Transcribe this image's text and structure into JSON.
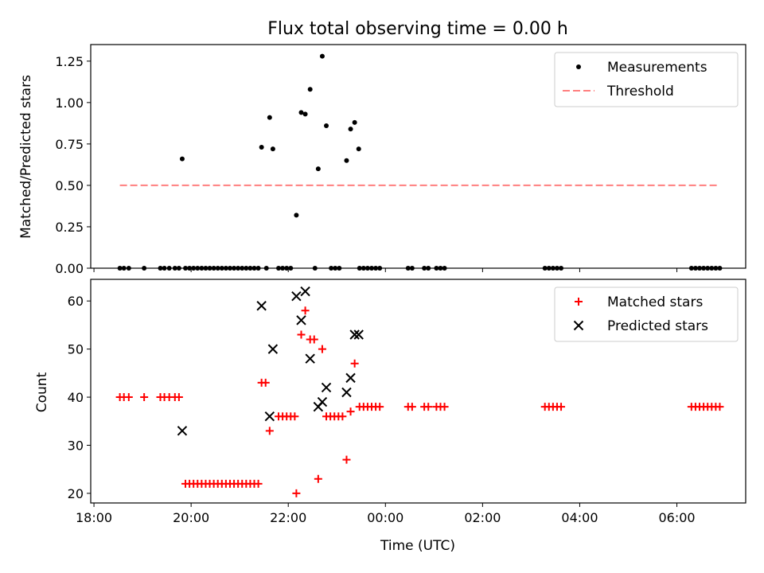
{
  "title": "Flux total observing time = 0.00 h",
  "chart_data": [
    {
      "type": "scatter",
      "ylabel": "Matched/Predicted stars",
      "xlabel": "",
      "ylim": [
        0,
        1.35
      ],
      "yticks": [
        0,
        0.25,
        0.5,
        0.75,
        1.0,
        1.25
      ],
      "ytick_labels": [
        "0.00",
        "0.25",
        "0.50",
        "0.75",
        "1.00",
        "1.25"
      ],
      "legend": {
        "position": "top-right",
        "entries": [
          "Measurements",
          "Threshold"
        ]
      },
      "series": [
        {
          "name": "Measurements",
          "marker": "dot",
          "color": "#000000",
          "points": [
            [
              "18:32",
              0
            ],
            [
              "18:37",
              0
            ],
            [
              "18:43",
              0
            ],
            [
              "19:02",
              0
            ],
            [
              "19:22",
              0
            ],
            [
              "19:27",
              0
            ],
            [
              "19:33",
              0
            ],
            [
              "19:40",
              0
            ],
            [
              "19:45",
              0
            ],
            [
              "19:53",
              0
            ],
            [
              "19:58",
              0
            ],
            [
              "20:03",
              0
            ],
            [
              "20:08",
              0
            ],
            [
              "20:13",
              0
            ],
            [
              "20:18",
              0
            ],
            [
              "20:23",
              0
            ],
            [
              "20:28",
              0
            ],
            [
              "20:33",
              0
            ],
            [
              "20:38",
              0
            ],
            [
              "20:43",
              0
            ],
            [
              "20:48",
              0
            ],
            [
              "20:53",
              0
            ],
            [
              "20:58",
              0
            ],
            [
              "21:03",
              0
            ],
            [
              "21:08",
              0
            ],
            [
              "21:13",
              0
            ],
            [
              "21:18",
              0
            ],
            [
              "21:23",
              0
            ],
            [
              "21:33",
              0
            ],
            [
              "21:48",
              0
            ],
            [
              "21:53",
              0
            ],
            [
              "21:58",
              0
            ],
            [
              "22:03",
              0
            ],
            [
              "22:33",
              0
            ],
            [
              "22:53",
              0
            ],
            [
              "22:58",
              0
            ],
            [
              "23:03",
              0
            ],
            [
              "23:28",
              0
            ],
            [
              "23:33",
              0
            ],
            [
              "23:38",
              0
            ],
            [
              "23:43",
              0
            ],
            [
              "23:48",
              0
            ],
            [
              "23:53",
              0
            ],
            [
              "00:28",
              0
            ],
            [
              "00:33",
              0
            ],
            [
              "00:48",
              0
            ],
            [
              "00:53",
              0
            ],
            [
              "01:03",
              0
            ],
            [
              "01:08",
              0
            ],
            [
              "01:13",
              0
            ],
            [
              "03:17",
              0
            ],
            [
              "03:22",
              0
            ],
            [
              "03:27",
              0
            ],
            [
              "03:32",
              0
            ],
            [
              "03:37",
              0
            ],
            [
              "06:18",
              0
            ],
            [
              "06:23",
              0
            ],
            [
              "06:28",
              0
            ],
            [
              "06:33",
              0
            ],
            [
              "06:38",
              0
            ],
            [
              "06:43",
              0
            ],
            [
              "06:48",
              0
            ],
            [
              "06:53",
              0
            ],
            [
              "19:49",
              0.66
            ],
            [
              "21:27",
              0.73
            ],
            [
              "21:37",
              0.91
            ],
            [
              "21:41",
              0.72
            ],
            [
              "22:10",
              0.32
            ],
            [
              "22:16",
              0.94
            ],
            [
              "22:21",
              0.93
            ],
            [
              "22:27",
              1.08
            ],
            [
              "22:37",
              0.6
            ],
            [
              "22:42",
              1.28
            ],
            [
              "22:47",
              0.86
            ],
            [
              "23:12",
              0.65
            ],
            [
              "23:17",
              0.84
            ],
            [
              "23:22",
              0.88
            ],
            [
              "23:27",
              0.72
            ]
          ]
        },
        {
          "name": "Threshold",
          "style": "dashed",
          "color": "#ff7f7f",
          "points": [
            [
              "18:32",
              0.5
            ],
            [
              "06:53",
              0.5
            ]
          ]
        }
      ]
    },
    {
      "type": "scatter",
      "ylabel": "Count",
      "xlabel": "Time (UTC)",
      "ylim": [
        18,
        64.5
      ],
      "yticks": [
        20,
        30,
        40,
        50,
        60
      ],
      "xticks": [
        "18:00",
        "20:00",
        "22:00",
        "00:00",
        "02:00",
        "04:00",
        "06:00"
      ],
      "xlim": [
        "17:56",
        "07:25"
      ],
      "legend": {
        "position": "top-right",
        "entries": [
          "Matched stars",
          "Predicted stars"
        ]
      },
      "series": [
        {
          "name": "Matched stars",
          "marker": "plus",
          "color": "#ff0000",
          "points": [
            [
              "18:32",
              40
            ],
            [
              "18:37",
              40
            ],
            [
              "18:43",
              40
            ],
            [
              "19:02",
              40
            ],
            [
              "19:22",
              40
            ],
            [
              "19:27",
              40
            ],
            [
              "19:33",
              40
            ],
            [
              "19:40",
              40
            ],
            [
              "19:45",
              40
            ],
            [
              "19:53",
              22
            ],
            [
              "19:58",
              22
            ],
            [
              "20:03",
              22
            ],
            [
              "20:08",
              22
            ],
            [
              "20:13",
              22
            ],
            [
              "20:18",
              22
            ],
            [
              "20:23",
              22
            ],
            [
              "20:28",
              22
            ],
            [
              "20:33",
              22
            ],
            [
              "20:38",
              22
            ],
            [
              "20:43",
              22
            ],
            [
              "20:48",
              22
            ],
            [
              "20:53",
              22
            ],
            [
              "20:58",
              22
            ],
            [
              "21:03",
              22
            ],
            [
              "21:08",
              22
            ],
            [
              "21:13",
              22
            ],
            [
              "21:18",
              22
            ],
            [
              "21:23",
              22
            ],
            [
              "21:27",
              43
            ],
            [
              "21:32",
              43
            ],
            [
              "21:37",
              33
            ],
            [
              "21:48",
              36
            ],
            [
              "21:53",
              36
            ],
            [
              "21:58",
              36
            ],
            [
              "22:03",
              36
            ],
            [
              "22:08",
              36
            ],
            [
              "22:10",
              20
            ],
            [
              "22:16",
              53
            ],
            [
              "22:21",
              58
            ],
            [
              "22:27",
              52
            ],
            [
              "22:32",
              52
            ],
            [
              "22:37",
              23
            ],
            [
              "22:42",
              50
            ],
            [
              "22:47",
              36
            ],
            [
              "22:52",
              36
            ],
            [
              "22:57",
              36
            ],
            [
              "23:02",
              36
            ],
            [
              "23:07",
              36
            ],
            [
              "23:12",
              27
            ],
            [
              "23:17",
              37
            ],
            [
              "23:22",
              47
            ],
            [
              "23:28",
              38
            ],
            [
              "23:33",
              38
            ],
            [
              "23:38",
              38
            ],
            [
              "23:43",
              38
            ],
            [
              "23:48",
              38
            ],
            [
              "23:53",
              38
            ],
            [
              "00:28",
              38
            ],
            [
              "00:33",
              38
            ],
            [
              "00:48",
              38
            ],
            [
              "00:53",
              38
            ],
            [
              "01:03",
              38
            ],
            [
              "01:08",
              38
            ],
            [
              "01:13",
              38
            ],
            [
              "03:17",
              38
            ],
            [
              "03:22",
              38
            ],
            [
              "03:27",
              38
            ],
            [
              "03:32",
              38
            ],
            [
              "03:37",
              38
            ],
            [
              "06:18",
              38
            ],
            [
              "06:23",
              38
            ],
            [
              "06:28",
              38
            ],
            [
              "06:33",
              38
            ],
            [
              "06:38",
              38
            ],
            [
              "06:43",
              38
            ],
            [
              "06:48",
              38
            ],
            [
              "06:53",
              38
            ]
          ]
        },
        {
          "name": "Predicted stars",
          "marker": "x",
          "color": "#000000",
          "points": [
            [
              "19:49",
              33
            ],
            [
              "21:27",
              59
            ],
            [
              "21:37",
              36
            ],
            [
              "21:41",
              50
            ],
            [
              "22:10",
              61
            ],
            [
              "22:16",
              56
            ],
            [
              "22:21",
              62
            ],
            [
              "22:27",
              48
            ],
            [
              "22:37",
              38
            ],
            [
              "22:42",
              39
            ],
            [
              "22:47",
              42
            ],
            [
              "23:12",
              41
            ],
            [
              "23:17",
              44
            ],
            [
              "23:22",
              53
            ],
            [
              "23:27",
              53
            ]
          ]
        }
      ]
    }
  ]
}
